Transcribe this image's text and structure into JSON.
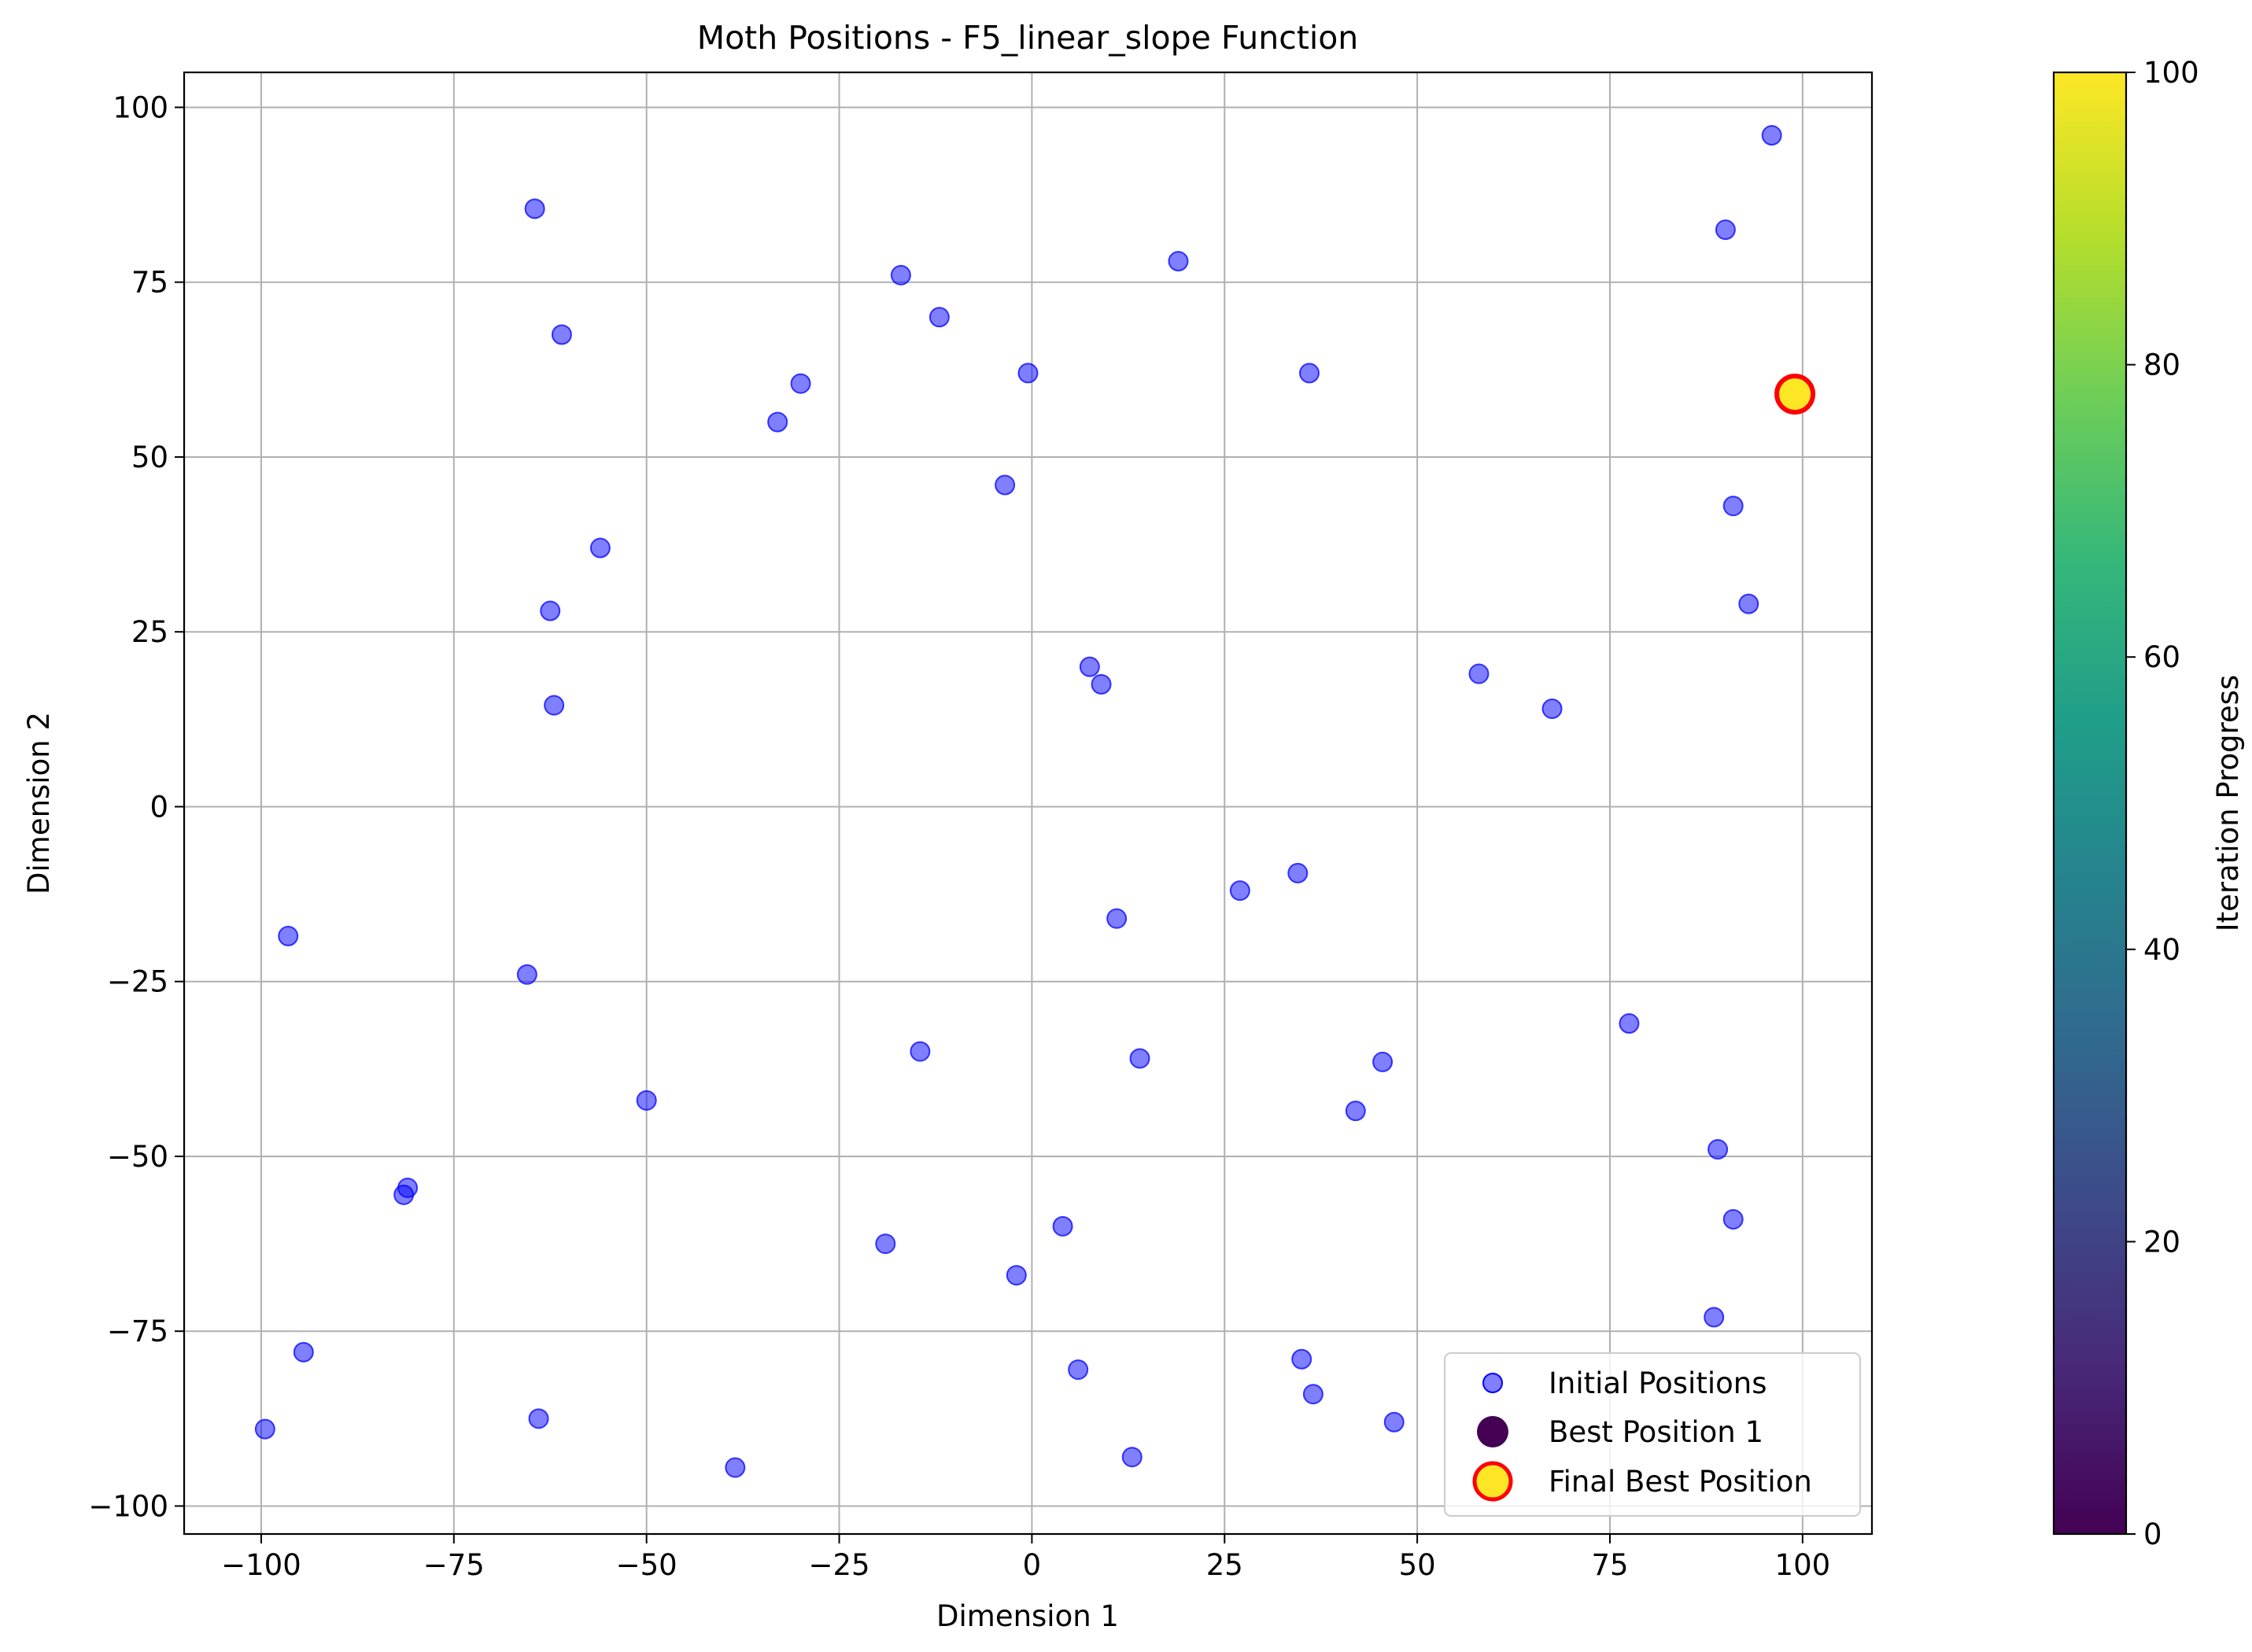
{
  "chart_data": {
    "type": "scatter",
    "title": "Moth Positions - F5_linear_slope Function",
    "xlabel": "Dimension 1",
    "ylabel": "Dimension 2",
    "xlim": [
      -110,
      109
    ],
    "ylim": [
      -104,
      105
    ],
    "xticks": [
      -100,
      -75,
      -50,
      -25,
      0,
      25,
      50,
      75,
      100
    ],
    "yticks": [
      -100,
      -75,
      -50,
      -25,
      0,
      25,
      50,
      75,
      100
    ],
    "xtick_labels": [
      "−100",
      "−75",
      "−50",
      "−25",
      "0",
      "25",
      "50",
      "75",
      "100"
    ],
    "ytick_labels": [
      "−100",
      "−75",
      "−50",
      "−25",
      "0",
      "25",
      "50",
      "75",
      "100"
    ],
    "grid": true,
    "legend_position": "lower-right",
    "series": [
      {
        "name": "Initial Positions",
        "color": "#0000ff",
        "alpha": 0.5,
        "marker": "circle",
        "points": [
          [
            96,
            96
          ],
          [
            90,
            82.5
          ],
          [
            -64.5,
            85.5
          ],
          [
            19,
            78
          ],
          [
            -17,
            76
          ],
          [
            -12,
            70
          ],
          [
            -61,
            67.5
          ],
          [
            -0.5,
            62
          ],
          [
            36,
            62
          ],
          [
            -30,
            60.5
          ],
          [
            -33,
            55
          ],
          [
            -3.5,
            46
          ],
          [
            91,
            43
          ],
          [
            -56,
            37
          ],
          [
            -62.5,
            28
          ],
          [
            93,
            29
          ],
          [
            7.5,
            20
          ],
          [
            9,
            17.5
          ],
          [
            58,
            19
          ],
          [
            67.5,
            14
          ],
          [
            -62,
            14.5
          ],
          [
            -96.5,
            -18.5
          ],
          [
            34.5,
            -9.5
          ],
          [
            27,
            -12
          ],
          [
            11,
            -16
          ],
          [
            -65.5,
            -24
          ],
          [
            77.5,
            -31
          ],
          [
            -14.5,
            -35
          ],
          [
            14,
            -36
          ],
          [
            45.5,
            -36.5
          ],
          [
            -50,
            -42
          ],
          [
            42,
            -43.5
          ],
          [
            89,
            -49
          ],
          [
            -81,
            -54.5
          ],
          [
            -81.5,
            -55.5
          ],
          [
            91,
            -59
          ],
          [
            4,
            -60
          ],
          [
            -19,
            -62.5
          ],
          [
            -2,
            -67
          ],
          [
            88.5,
            -73
          ],
          [
            -94.5,
            -78
          ],
          [
            35,
            -79
          ],
          [
            6,
            -80.5
          ],
          [
            36.5,
            -84
          ],
          [
            -64,
            -87.5
          ],
          [
            47,
            -88
          ],
          [
            -99.5,
            -89
          ],
          [
            13,
            -93
          ],
          [
            -38.5,
            -94.5
          ]
        ]
      },
      {
        "name": "Best Position 1",
        "color": "#440154",
        "marker": "circle",
        "points": []
      },
      {
        "name": "Final Best Position",
        "color": "#fde725",
        "edgecolor": "#ff0000",
        "marker": "circle",
        "points": [
          [
            99,
            59
          ]
        ]
      }
    ],
    "colorbar": {
      "label": "Iteration Progress",
      "colormap": "viridis",
      "range": [
        0,
        100
      ],
      "ticks": [
        0,
        20,
        40,
        60,
        80,
        100
      ],
      "colors": [
        "#440154",
        "#482878",
        "#3e4989",
        "#31688e",
        "#26828e",
        "#1f9e89",
        "#35b779",
        "#6ece58",
        "#b5de2b",
        "#fde725"
      ]
    }
  }
}
